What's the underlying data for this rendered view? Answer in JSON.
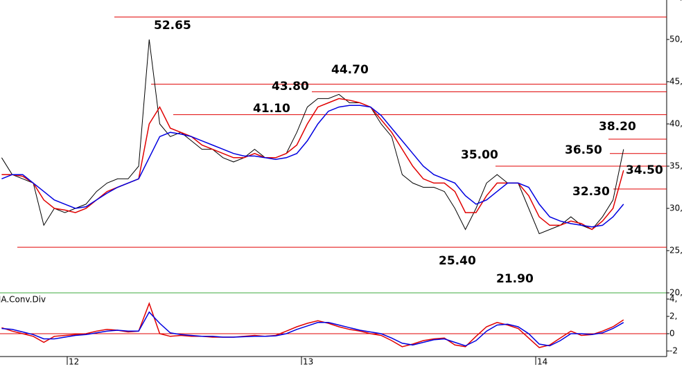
{
  "chart_data": [
    {
      "type": "line",
      "xlim": [
        11.713,
        14.559
      ],
      "ylim": [
        20,
        55
      ],
      "yticks": [
        {
          "value": 20,
          "label": "20,"
        },
        {
          "value": 25,
          "label": "25,"
        },
        {
          "value": 30,
          "label": "30,"
        },
        {
          "value": 35,
          "label": "35,"
        },
        {
          "value": 40,
          "label": "40,"
        },
        {
          "value": 45,
          "label": "45,"
        },
        {
          "value": 50,
          "label": "50,"
        },
        {
          "value": 55,
          "label": "55,"
        }
      ],
      "x": [
        11.72,
        11.765,
        11.81,
        11.855,
        11.9,
        11.945,
        11.99,
        12.035,
        12.08,
        12.125,
        12.17,
        12.215,
        12.26,
        12.305,
        12.35,
        12.395,
        12.44,
        12.485,
        12.53,
        12.575,
        12.62,
        12.665,
        12.71,
        12.755,
        12.8,
        12.845,
        12.89,
        12.935,
        12.98,
        13.025,
        13.07,
        13.115,
        13.16,
        13.205,
        13.25,
        13.295,
        13.34,
        13.385,
        13.43,
        13.475,
        13.52,
        13.565,
        13.61,
        13.655,
        13.7,
        13.745,
        13.79,
        13.835,
        13.88,
        13.925,
        13.97,
        14.015,
        14.06,
        14.105,
        14.15,
        14.195,
        14.24,
        14.285,
        14.33,
        14.375
      ],
      "series": [
        {
          "color": "#000000",
          "values": [
            36,
            34,
            33.5,
            33,
            28,
            30,
            29.5,
            30,
            30.5,
            32,
            33,
            33.5,
            33.5,
            35,
            50,
            40,
            38.5,
            39,
            38,
            37,
            37,
            36,
            35.5,
            36,
            37,
            36,
            36,
            36.5,
            39,
            42,
            43,
            43,
            43.5,
            42.5,
            42.5,
            42,
            40,
            38.5,
            34,
            33,
            32.5,
            32.5,
            32,
            30,
            27.5,
            30,
            33,
            34,
            33,
            33,
            30,
            27,
            27.5,
            28,
            29,
            28,
            27.5,
            29,
            31,
            37
          ]
        },
        {
          "color": "#e00000",
          "values": [
            34,
            34,
            33.8,
            33,
            31,
            30,
            29.8,
            29.5,
            30,
            31,
            32,
            32.5,
            33,
            33.5,
            40,
            42,
            39.5,
            39,
            38.5,
            37.5,
            37,
            36.5,
            36,
            36,
            36.5,
            36,
            36,
            36.5,
            37.5,
            40,
            42,
            42.5,
            43,
            42.8,
            42.5,
            42,
            40.5,
            39,
            37,
            35,
            33.5,
            33,
            33,
            32,
            29.5,
            29.5,
            31.5,
            33,
            33,
            33,
            31.5,
            29,
            28,
            28,
            28.5,
            28.2,
            27.5,
            28.5,
            30,
            34.5
          ]
        },
        {
          "color": "#0000e0",
          "values": [
            33.5,
            34,
            34,
            33,
            32,
            31,
            30.5,
            30,
            30.2,
            31,
            31.8,
            32.5,
            33,
            33.5,
            36,
            38.5,
            39,
            38.8,
            38.5,
            38,
            37.5,
            37,
            36.5,
            36.2,
            36.2,
            36,
            35.8,
            36,
            36.5,
            38,
            40,
            41.5,
            42,
            42.2,
            42.2,
            42,
            41,
            39.5,
            38,
            36.5,
            35,
            34,
            33.5,
            33,
            31.5,
            30.5,
            31,
            32,
            33,
            33,
            32.5,
            30.5,
            29,
            28.5,
            28.2,
            28,
            27.8,
            28,
            29,
            30.5
          ]
        }
      ],
      "levels": [
        {
          "value": 52.65,
          "label": "52.65"
        },
        {
          "value": 44.7,
          "label": "44.70"
        },
        {
          "value": 43.8,
          "label": "43.80"
        },
        {
          "value": 41.1,
          "label": "41.10"
        },
        {
          "value": 38.2,
          "label": "38.20"
        },
        {
          "value": 36.5,
          "label": "36.50"
        },
        {
          "value": 35,
          "label": "35.00"
        },
        {
          "value": 34.5,
          "label": "34.50"
        },
        {
          "value": 32.3,
          "label": "32.30"
        },
        {
          "value": 25.4,
          "label": "25.40"
        },
        {
          "value": 21.9,
          "label": "21.90"
        }
      ]
    },
    {
      "type": "line",
      "title": "MA.Conv.Div",
      "xlim": [
        11.713,
        14.559
      ],
      "ylim": [
        -2.4,
        4.64
      ],
      "xticks": [
        12,
        13,
        14
      ],
      "yticks": [
        -2,
        0,
        {
          "value": 2,
          "label": "2,"
        },
        {
          "value": 4,
          "label": "4,"
        }
      ],
      "x": [
        11.72,
        11.765,
        11.81,
        11.855,
        11.9,
        11.945,
        11.99,
        12.035,
        12.08,
        12.125,
        12.17,
        12.215,
        12.26,
        12.305,
        12.35,
        12.395,
        12.44,
        12.485,
        12.53,
        12.575,
        12.62,
        12.665,
        12.71,
        12.755,
        12.8,
        12.845,
        12.89,
        12.935,
        12.98,
        13.025,
        13.07,
        13.115,
        13.16,
        13.205,
        13.25,
        13.295,
        13.34,
        13.385,
        13.43,
        13.475,
        13.52,
        13.565,
        13.61,
        13.655,
        13.7,
        13.745,
        13.79,
        13.835,
        13.88,
        13.925,
        13.97,
        14.015,
        14.06,
        14.105,
        14.15,
        14.195,
        14.24,
        14.285,
        14.33,
        14.375
      ],
      "zero_line_color": "#e00000",
      "series": [
        {
          "color": "#e00000",
          "values": [
            0.7,
            0.3,
            0,
            -0.3,
            -1,
            -0.3,
            -0.2,
            -0.1,
            0,
            0.3,
            0.5,
            0.4,
            0.2,
            0.3,
            3.5,
            0,
            -0.3,
            -0.2,
            -0.3,
            -0.3,
            -0.4,
            -0.4,
            -0.4,
            -0.3,
            -0.2,
            -0.3,
            -0.2,
            0.3,
            0.8,
            1.2,
            1.5,
            1.2,
            0.8,
            0.5,
            0.3,
            0,
            -0.2,
            -0.8,
            -1.5,
            -1.2,
            -0.8,
            -0.6,
            -0.5,
            -1.3,
            -1.5,
            -0.3,
            0.8,
            1.3,
            1,
            0.6,
            -0.5,
            -1.6,
            -1.3,
            -0.5,
            0.3,
            -0.2,
            -0.1,
            0.3,
            0.8,
            1.6
          ]
        },
        {
          "color": "#0000e0",
          "values": [
            0.6,
            0.5,
            0.2,
            -0.1,
            -0.6,
            -0.6,
            -0.4,
            -0.2,
            -0.1,
            0.1,
            0.3,
            0.4,
            0.3,
            0.3,
            2.5,
            1.2,
            0.1,
            -0.1,
            -0.2,
            -0.3,
            -0.3,
            -0.4,
            -0.4,
            -0.35,
            -0.3,
            -0.3,
            -0.25,
            0,
            0.5,
            0.9,
            1.3,
            1.3,
            1,
            0.7,
            0.4,
            0.2,
            0,
            -0.5,
            -1.1,
            -1.3,
            -1,
            -0.7,
            -0.6,
            -1,
            -1.4,
            -0.8,
            0.3,
            1,
            1.1,
            0.8,
            0,
            -1.2,
            -1.4,
            -0.8,
            0,
            0,
            -0.1,
            0.1,
            0.6,
            1.3
          ]
        }
      ]
    }
  ]
}
